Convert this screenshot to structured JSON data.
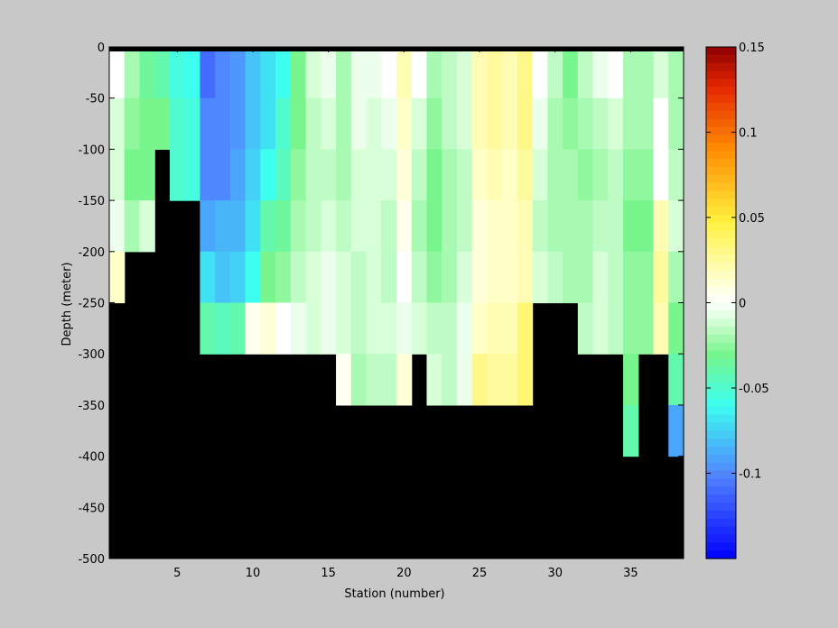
{
  "chart_data": {
    "type": "heatmap",
    "title": "",
    "xlabel": "Station (number)",
    "ylabel": "Depth (meter)",
    "xlim": [
      1,
      38
    ],
    "ylim": [
      -500,
      0
    ],
    "xticks": [
      5,
      10,
      15,
      20,
      25,
      30,
      35
    ],
    "yticks": [
      0,
      -50,
      -100,
      -150,
      -200,
      -250,
      -300,
      -350,
      -400,
      -450,
      -500
    ],
    "clim": [
      -0.15,
      0.15
    ],
    "colorbar_ticks": [
      0.15,
      0.1,
      0.05,
      0,
      -0.05,
      -0.1
    ],
    "colorbar_tick_labels": [
      "0.15",
      "0.1",
      "0.05",
      "0",
      "-0.05",
      "-0.1"
    ],
    "colormap": "jet-centered-white",
    "mask_color": "#000000",
    "depth_levels": [
      0,
      -50,
      -100,
      -150,
      -200,
      -250,
      -300,
      -350,
      -400,
      -450,
      -500
    ],
    "bottom_depth_by_station": [
      -250,
      -250,
      -200,
      -75,
      -150,
      -150,
      -250,
      -250,
      -250,
      -250,
      -250,
      -250,
      -250,
      -250,
      -250,
      -300,
      -300,
      -300,
      -300,
      -300,
      -250,
      -300,
      -300,
      -300,
      -300,
      -300,
      -300,
      -300,
      -250,
      -250,
      -250,
      -300,
      -300,
      -300,
      -400,
      -400,
      -300,
      -400
    ],
    "values_by_station": [
      [
        0.0,
        -0.01,
        -0.01,
        -0.005,
        0.015
      ],
      [
        -0.02,
        -0.025,
        -0.03,
        -0.02
      ],
      [
        -0.035,
        -0.03,
        -0.03,
        -0.01
      ],
      [
        -0.04,
        -0.03
      ],
      [
        -0.055,
        -0.05,
        -0.05
      ],
      [
        -0.06,
        -0.055,
        -0.055
      ],
      [
        -0.11,
        -0.1,
        -0.1,
        -0.09,
        -0.07,
        -0.04
      ],
      [
        -0.1,
        -0.1,
        -0.1,
        -0.085,
        -0.08,
        -0.045
      ],
      [
        -0.095,
        -0.095,
        -0.09,
        -0.085,
        -0.075,
        -0.04
      ],
      [
        -0.08,
        -0.08,
        -0.075,
        -0.07,
        -0.06,
        0.005
      ],
      [
        -0.07,
        -0.07,
        -0.06,
        -0.04,
        -0.03,
        0.01
      ],
      [
        -0.06,
        -0.05,
        -0.045,
        -0.035,
        -0.025,
        0.0
      ],
      [
        -0.03,
        -0.03,
        -0.025,
        -0.02,
        -0.015,
        -0.005
      ],
      [
        -0.01,
        -0.015,
        -0.015,
        -0.015,
        -0.01,
        -0.01
      ],
      [
        -0.005,
        -0.01,
        -0.015,
        -0.01,
        -0.005,
        -0.005
      ],
      [
        -0.02,
        -0.02,
        -0.02,
        -0.015,
        -0.01,
        -0.01,
        0.003
      ],
      [
        -0.005,
        -0.005,
        -0.01,
        -0.01,
        -0.015,
        -0.015,
        -0.02
      ],
      [
        -0.005,
        -0.01,
        -0.01,
        -0.01,
        -0.01,
        -0.01,
        -0.015
      ],
      [
        0.0,
        -0.005,
        -0.01,
        -0.015,
        -0.015,
        -0.01,
        -0.015
      ],
      [
        0.02,
        0.015,
        0.01,
        0.005,
        0.0,
        -0.005,
        0.01
      ],
      [
        0.0,
        -0.01,
        -0.015,
        -0.02,
        -0.015,
        -0.01
      ],
      [
        -0.02,
        -0.025,
        -0.03,
        -0.03,
        -0.025,
        -0.015,
        -0.01
      ],
      [
        -0.015,
        -0.015,
        -0.02,
        -0.02,
        -0.02,
        -0.015,
        -0.015
      ],
      [
        -0.01,
        -0.01,
        -0.015,
        -0.015,
        -0.01,
        -0.005,
        -0.005
      ],
      [
        0.02,
        0.02,
        0.015,
        0.01,
        0.01,
        0.015,
        0.03
      ],
      [
        0.025,
        0.025,
        0.02,
        0.015,
        0.015,
        0.02,
        0.025
      ],
      [
        0.02,
        0.02,
        0.015,
        0.015,
        0.015,
        0.02,
        0.025
      ],
      [
        0.03,
        0.03,
        0.025,
        0.02,
        0.02,
        0.035,
        0.035
      ],
      [
        0.0,
        -0.005,
        -0.01,
        -0.015,
        -0.01
      ],
      [
        -0.015,
        -0.02,
        -0.02,
        -0.02,
        -0.015
      ],
      [
        -0.03,
        -0.025,
        -0.02,
        -0.02,
        -0.02
      ],
      [
        -0.015,
        -0.02,
        -0.025,
        -0.02,
        -0.02,
        -0.015
      ],
      [
        -0.005,
        -0.015,
        -0.02,
        -0.015,
        -0.01,
        -0.01
      ],
      [
        0.0,
        -0.01,
        -0.015,
        -0.015,
        -0.015,
        -0.015
      ],
      [
        -0.02,
        -0.02,
        -0.025,
        -0.03,
        -0.025,
        -0.025,
        -0.03,
        -0.04
      ],
      [
        -0.02,
        -0.02,
        -0.025,
        -0.03,
        -0.025,
        -0.025
      ],
      [
        -0.01,
        0.0,
        0.0,
        0.02,
        0.025,
        0.02
      ],
      [
        -0.02,
        -0.02,
        -0.015,
        -0.01,
        -0.02,
        -0.03,
        -0.04,
        -0.09
      ]
    ]
  }
}
